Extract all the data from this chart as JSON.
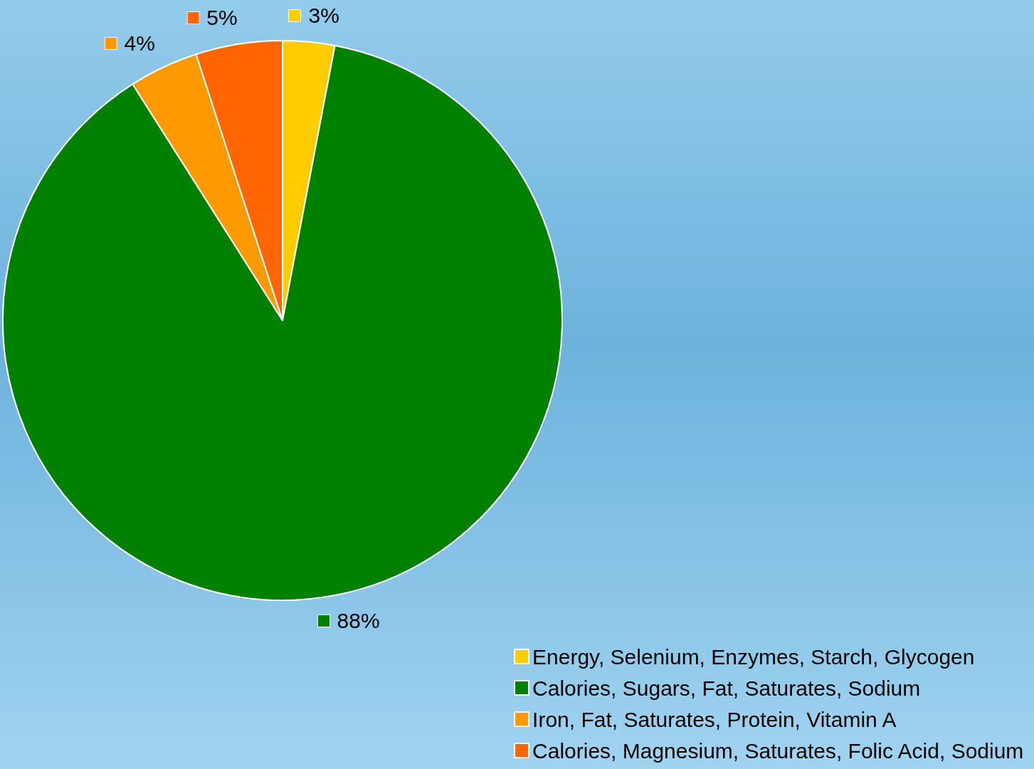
{
  "chart_data": {
    "type": "pie",
    "categories": [
      "Energy, Selenium, Enzymes, Starch, Glycogen",
      "Calories, Sugars, Fat, Saturates, Sodium",
      "Iron, Fat, Saturates, Protein, Vitamin A",
      "Calories, Magnesium, Saturates, Folic Acid, Sodium"
    ],
    "values": [
      3,
      88,
      4,
      5
    ],
    "colors": [
      "#ffcc00",
      "#008000",
      "#ff9900",
      "#ff6600"
    ],
    "value_labels": [
      "3%",
      "88%",
      "4%",
      "5%"
    ],
    "legend": "bottom right"
  }
}
